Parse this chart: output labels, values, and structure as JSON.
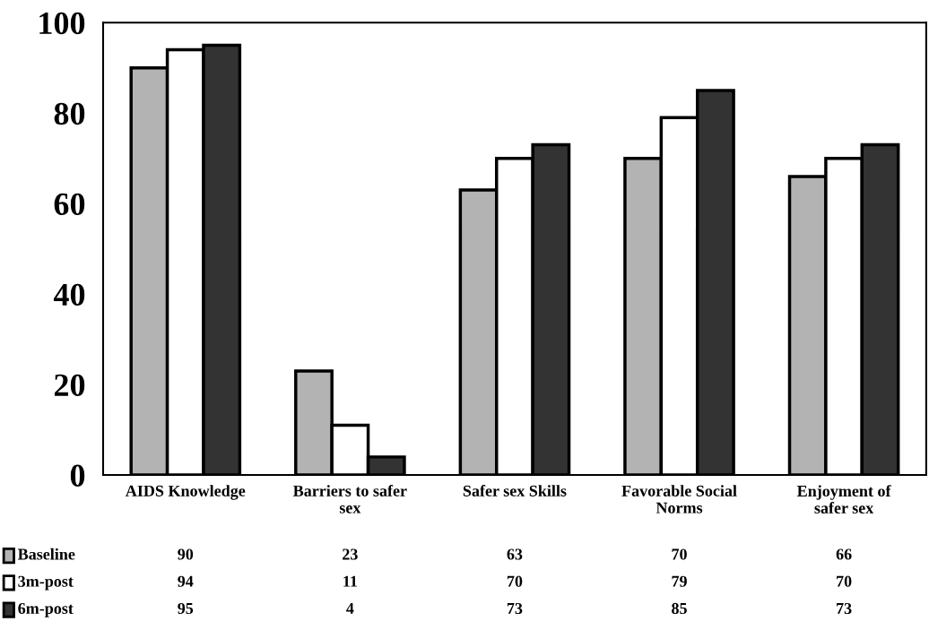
{
  "chart_data": {
    "type": "bar",
    "categories": [
      "AIDS Knowledge",
      "Barriers to safer\nsex",
      "Safer sex Skills",
      "Favorable Social\nNorms",
      "Enjoyment of\nsafer sex"
    ],
    "series": [
      {
        "name": "Baseline",
        "color": "#b3b3b3",
        "values": [
          90,
          23,
          63,
          70,
          66
        ]
      },
      {
        "name": "3m-post",
        "color": "#ffffff",
        "values": [
          94,
          11,
          70,
          79,
          70
        ]
      },
      {
        "name": "6m-post",
        "color": "#333333",
        "values": [
          95,
          4,
          73,
          85,
          73
        ]
      }
    ],
    "ylim": [
      0,
      100
    ],
    "yticks": [
      0,
      20,
      40,
      60,
      80,
      100
    ],
    "grid": false,
    "legend": "bottom",
    "data_labels": true
  }
}
